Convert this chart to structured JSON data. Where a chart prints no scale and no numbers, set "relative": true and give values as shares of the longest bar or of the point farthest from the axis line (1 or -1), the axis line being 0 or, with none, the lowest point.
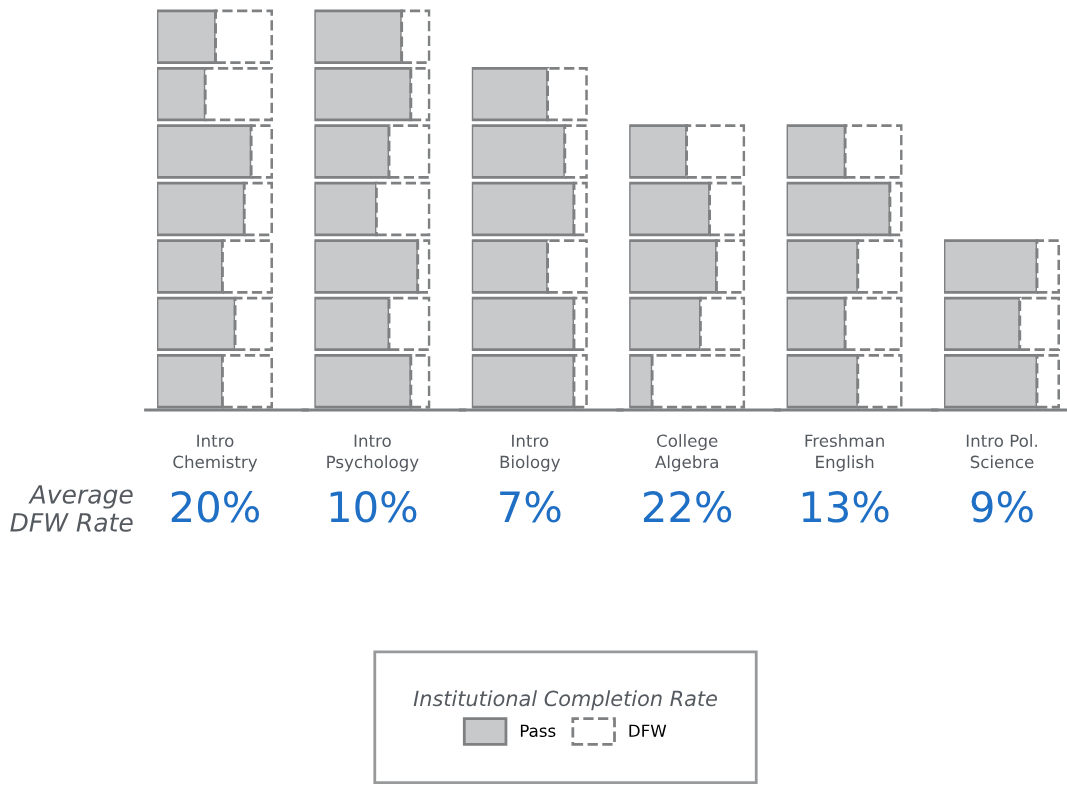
{
  "chart_data": [
    {
      "type": "bar",
      "orientation": "horizontal",
      "stacked": true,
      "relative": true,
      "xlabel": "Intro\nChemistry",
      "categories": [
        null,
        null,
        null,
        null,
        null,
        null,
        null
      ],
      "legend": "bottom",
      "legend_title": "Institutional Completion Rate",
      "annotations": [
        "20%",
        "Average\nDFW Rate"
      ],
      "series": [
        {
          "name": "Pass",
          "color": "#c8c9cb",
          "values": [
            0.51,
            0.42,
            0.82,
            0.76,
            0.57,
            0.68,
            0.57
          ]
        },
        {
          "name": "DFW",
          "color": "#ffffff",
          "values": [
            0.49,
            0.58,
            0.18,
            0.24,
            0.43,
            0.32,
            0.43
          ]
        }
      ]
    },
    {
      "type": "bar",
      "orientation": "horizontal",
      "stacked": true,
      "relative": true,
      "xlabel": "Intro\nPsychology",
      "categories": [
        null,
        null,
        null,
        null,
        null,
        null,
        null
      ],
      "annotations": [
        "10%"
      ],
      "series": [
        {
          "color": "#c8c9cb",
          "values": [
            0.76,
            0.84,
            0.65,
            0.54,
            0.9,
            0.65,
            0.84
          ]
        },
        {
          "color": "#ffffff",
          "values": [
            0.24,
            0.16,
            0.35,
            0.46,
            0.1,
            0.35,
            0.16
          ]
        }
      ]
    },
    {
      "type": "bar",
      "orientation": "horizontal",
      "stacked": true,
      "relative": true,
      "xlabel": "Intro\nBiology",
      "categories": [
        null,
        null,
        null,
        null,
        null,
        null
      ],
      "annotations": [
        "7%"
      ],
      "series": [
        {
          "color": "#c8c9cb",
          "values": [
            0.66,
            0.81,
            0.89,
            0.66,
            0.89,
            0.89
          ]
        },
        {
          "color": "#ffffff",
          "values": [
            0.34,
            0.19,
            0.11,
            0.34,
            0.11,
            0.11
          ]
        }
      ]
    },
    {
      "type": "bar",
      "orientation": "horizontal",
      "stacked": true,
      "relative": true,
      "xlabel": "College\nAlgebra",
      "categories": [
        null,
        null,
        null,
        null,
        null
      ],
      "annotations": [
        "22%"
      ],
      "series": [
        {
          "color": "#c8c9cb",
          "values": [
            0.5,
            0.7,
            0.76,
            0.62,
            0.2
          ]
        },
        {
          "color": "#ffffff",
          "values": [
            0.5,
            0.3,
            0.24,
            0.38,
            0.8
          ]
        }
      ]
    },
    {
      "type": "bar",
      "orientation": "horizontal",
      "stacked": true,
      "relative": true,
      "xlabel": "Freshman\nEnglish",
      "categories": [
        null,
        null,
        null,
        null,
        null
      ],
      "annotations": [
        "13%"
      ],
      "series": [
        {
          "color": "#c8c9cb",
          "values": [
            0.51,
            0.9,
            0.62,
            0.51,
            0.62
          ]
        },
        {
          "color": "#ffffff",
          "values": [
            0.49,
            0.1,
            0.38,
            0.49,
            0.38
          ]
        }
      ]
    },
    {
      "type": "bar",
      "orientation": "horizontal",
      "stacked": true,
      "relative": true,
      "xlabel": "Intro Pol.\nScience",
      "categories": [
        null,
        null,
        null
      ],
      "annotations": [
        "9%"
      ],
      "series": [
        {
          "color": "#c8c9cb",
          "values": [
            0.81,
            0.66,
            0.81
          ]
        },
        {
          "color": "#ffffff",
          "values": [
            0.19,
            0.34,
            0.19
          ]
        }
      ]
    }
  ]
}
